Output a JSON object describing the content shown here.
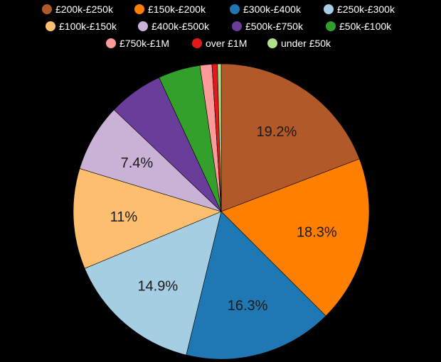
{
  "chart_data": {
    "type": "pie",
    "legend_position": "top",
    "slices": [
      {
        "label": "£200k-£250k",
        "value": 19.2,
        "display": "19.2%",
        "color": "#b15928"
      },
      {
        "label": "£150k-£200k",
        "value": 18.3,
        "display": "18.3%",
        "color": "#ff7f00"
      },
      {
        "label": "£300k-£400k",
        "value": 16.3,
        "display": "16.3%",
        "color": "#1f78b4"
      },
      {
        "label": "£250k-£300k",
        "value": 14.9,
        "display": "14.9%",
        "color": "#a6cee3"
      },
      {
        "label": "£100k-£150k",
        "value": 11.0,
        "display": "11%",
        "color": "#fdbf6f"
      },
      {
        "label": "£400k-£500k",
        "value": 7.4,
        "display": "7.4%",
        "color": "#cab2d6"
      },
      {
        "label": "£500k-£750k",
        "value": 6.0,
        "display": "",
        "color": "#6a3d9a"
      },
      {
        "label": "£50k-£100k",
        "value": 4.6,
        "display": "",
        "color": "#33a02c"
      },
      {
        "label": "£750k-£1M",
        "value": 1.3,
        "display": "",
        "color": "#fb9a99"
      },
      {
        "label": "over £1M",
        "value": 0.6,
        "display": "",
        "color": "#e31a1c"
      },
      {
        "label": "under £50k",
        "value": 0.4,
        "display": "",
        "color": "#b2df8a"
      }
    ]
  }
}
